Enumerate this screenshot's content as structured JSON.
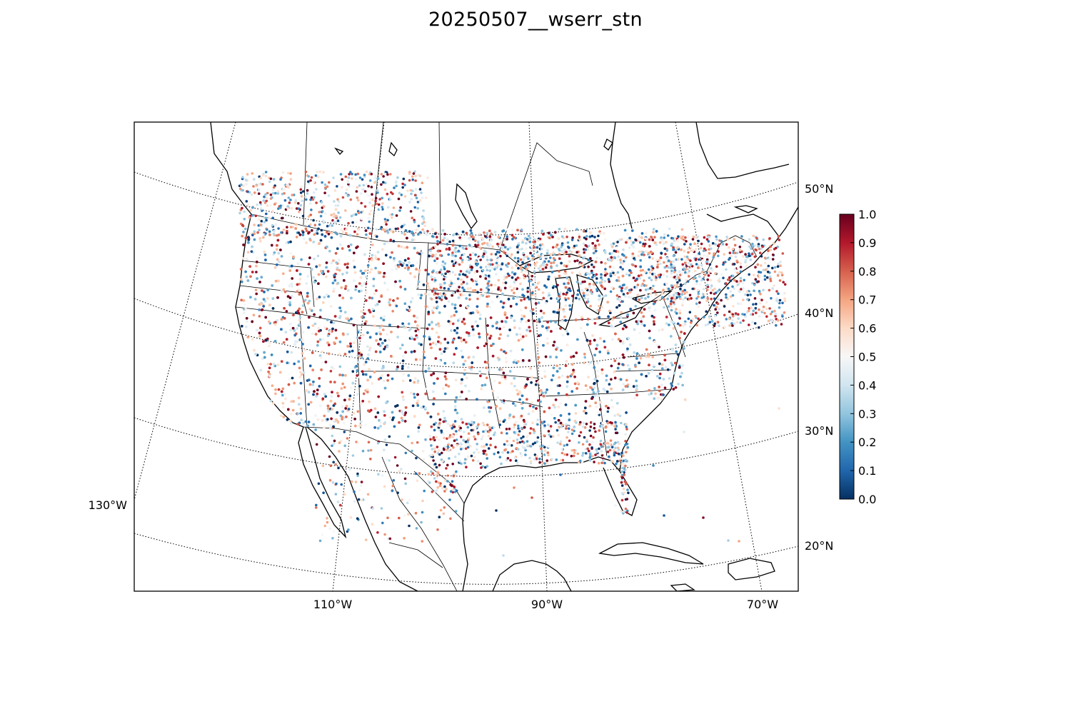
{
  "title": "20250507__wserr_stn",
  "map": {
    "projection": "lambert-conformal",
    "graticule_style": "dotted",
    "lon_labels": [
      "110°W",
      "90°W",
      "70°W",
      "130°W"
    ],
    "lat_labels": [
      "50°N",
      "40°N",
      "30°N",
      "20°N"
    ]
  },
  "colorbar": {
    "colormap": "RdBu_r",
    "min": 0.0,
    "max": 1.0,
    "ticks": [
      "0.0",
      "0.1",
      "0.2",
      "0.3",
      "0.4",
      "0.5",
      "0.6",
      "0.7",
      "0.8",
      "0.9",
      "1.0"
    ],
    "low_color": "#053061",
    "mid_color": "#f7f7f7",
    "high_color": "#67001f"
  },
  "chart_data": {
    "type": "scatter",
    "title": "20250507__wserr_stn",
    "value_range": [
      0.0,
      1.0
    ],
    "marker": "small filled circles (station values)",
    "notes_visible": "dense station points over the contiguous United States, southern Canada and northern Mexico; colour encodes wserr_stn"
  }
}
